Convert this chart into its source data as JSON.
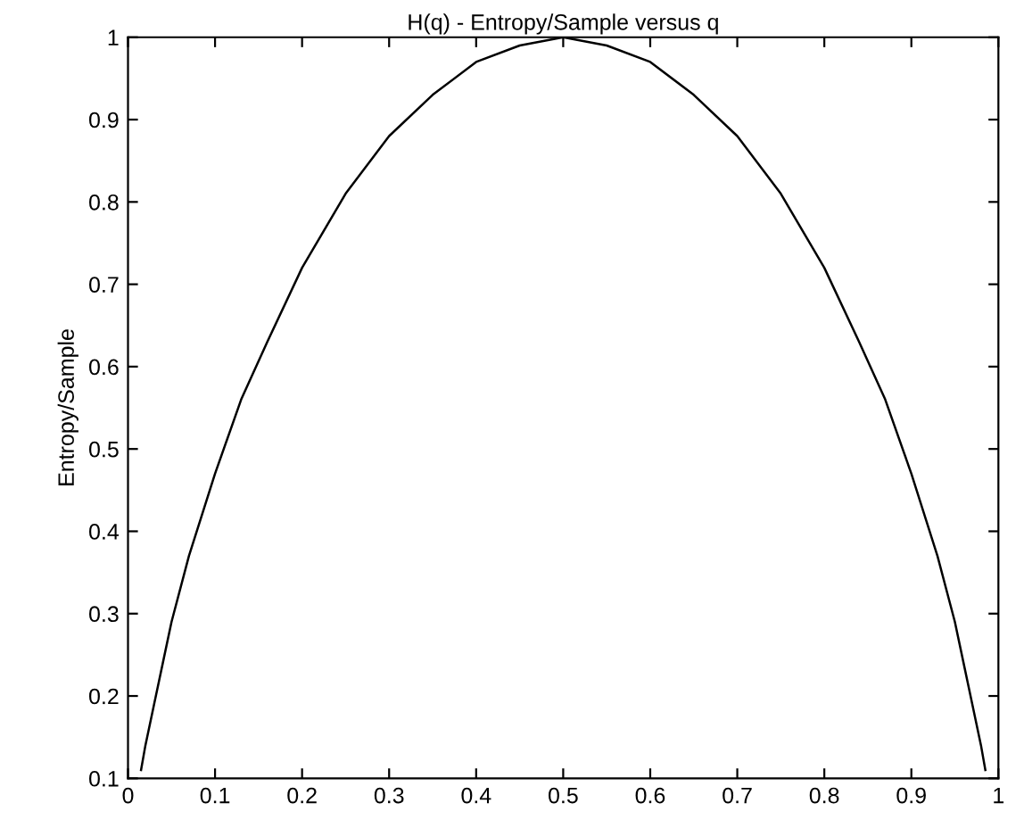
{
  "chart_data": {
    "type": "line",
    "title": "H(q) - Entropy/Sample versus q",
    "ylabel": "Entropy/Sample",
    "x": [
      0.015,
      0.02,
      0.03,
      0.04,
      0.05,
      0.07,
      0.1,
      0.13,
      0.16,
      0.2,
      0.25,
      0.3,
      0.35,
      0.4,
      0.45,
      0.5,
      0.55,
      0.6,
      0.65,
      0.7,
      0.75,
      0.8,
      0.84,
      0.87,
      0.9,
      0.93,
      0.95,
      0.96,
      0.97,
      0.98,
      0.985
    ],
    "series": [
      {
        "color": "#000000",
        "values": [
          0.11,
          0.14,
          0.19,
          0.24,
          0.29,
          0.37,
          0.47,
          0.56,
          0.63,
          0.72,
          0.81,
          0.88,
          0.93,
          0.97,
          0.99,
          1.0,
          0.99,
          0.97,
          0.93,
          0.88,
          0.81,
          0.72,
          0.63,
          0.56,
          0.47,
          0.37,
          0.29,
          0.24,
          0.19,
          0.14,
          0.11
        ]
      }
    ],
    "xlim": [
      0,
      1
    ],
    "ylim": [
      0.1,
      1
    ],
    "xticks": [
      0,
      0.1,
      0.2,
      0.3,
      0.4,
      0.5,
      0.6,
      0.7,
      0.8,
      0.9,
      1
    ],
    "yticks": [
      0.1,
      0.2,
      0.3,
      0.4,
      0.5,
      0.6,
      0.7,
      0.8,
      0.9,
      1
    ],
    "grid": false,
    "legend": false,
    "marker": "none",
    "line_style": "solid"
  }
}
